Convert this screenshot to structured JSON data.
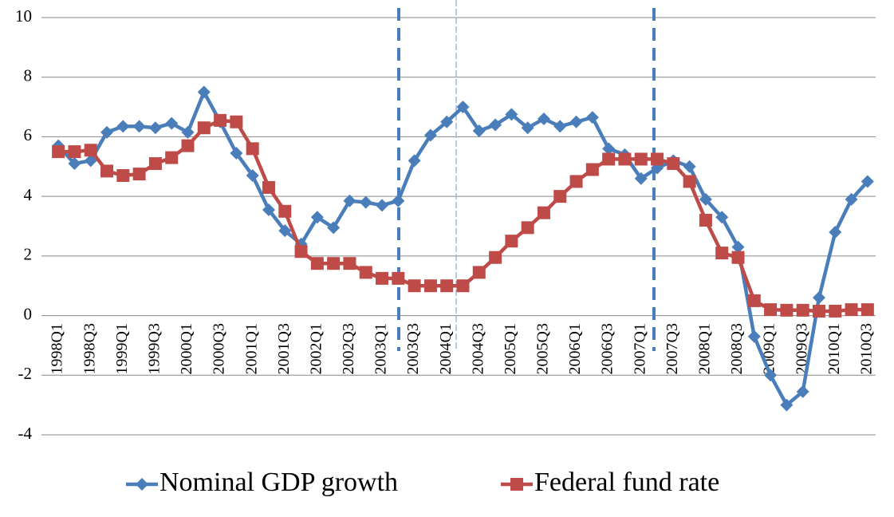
{
  "chart_data": {
    "type": "line",
    "categories": [
      "1998Q1",
      null,
      "1998Q3",
      null,
      "1999Q1",
      null,
      "1999Q3",
      null,
      "2000Q1",
      null,
      "2000Q3",
      null,
      "2001Q1",
      null,
      "2001Q3",
      null,
      "2002Q1",
      null,
      "2002Q3",
      null,
      "2003Q1",
      null,
      "2003Q3",
      null,
      "2004Q1",
      null,
      "2004Q3",
      null,
      "2005Q1",
      null,
      "2005Q3",
      null,
      "2006Q1",
      null,
      "2006Q3",
      null,
      "2007Q1",
      null,
      "2007Q3",
      null,
      "2008Q1",
      null,
      "2008Q3",
      null,
      "2009Q1",
      null,
      "2009Q3",
      null,
      "2010Q1",
      null,
      "2010Q3"
    ],
    "series": [
      {
        "name": "Nominal GDP growth",
        "color": "#4a7ebb",
        "marker": "diamond",
        "values": [
          5.7,
          5.1,
          5.2,
          6.15,
          6.35,
          6.35,
          6.3,
          6.45,
          6.15,
          7.5,
          6.5,
          5.45,
          4.7,
          3.55,
          2.85,
          2.4,
          3.3,
          2.95,
          3.85,
          3.8,
          3.7,
          3.85,
          5.2,
          6.05,
          6.5,
          7.0,
          6.2,
          6.4,
          6.75,
          6.3,
          6.6,
          6.35,
          6.5,
          6.65,
          5.6,
          5.4,
          4.6,
          4.95,
          5.2,
          5.0,
          3.9,
          3.3,
          2.3,
          -0.7,
          -2.0,
          -3.0,
          -2.55,
          0.6,
          2.8,
          3.9,
          4.5
        ]
      },
      {
        "name": "Federal fund rate",
        "color": "#be4b48",
        "marker": "square",
        "values": [
          5.5,
          5.5,
          5.55,
          4.85,
          4.7,
          4.75,
          5.1,
          5.3,
          5.7,
          6.3,
          6.55,
          6.5,
          5.6,
          4.3,
          3.5,
          2.15,
          1.75,
          1.75,
          1.75,
          1.45,
          1.25,
          1.25,
          1.0,
          1.0,
          1.0,
          1.0,
          1.45,
          1.95,
          2.5,
          2.95,
          3.45,
          4.0,
          4.5,
          4.9,
          5.25,
          5.25,
          5.25,
          5.25,
          5.1,
          4.5,
          3.2,
          2.1,
          1.95,
          0.5,
          0.2,
          0.18,
          0.18,
          0.15,
          0.15,
          0.2,
          0.2
        ]
      }
    ],
    "ylim": [
      -4,
      10
    ],
    "yticks": [
      -4,
      -2,
      0,
      2,
      4,
      6,
      8,
      10
    ],
    "grid": true,
    "legend": "bottom"
  }
}
